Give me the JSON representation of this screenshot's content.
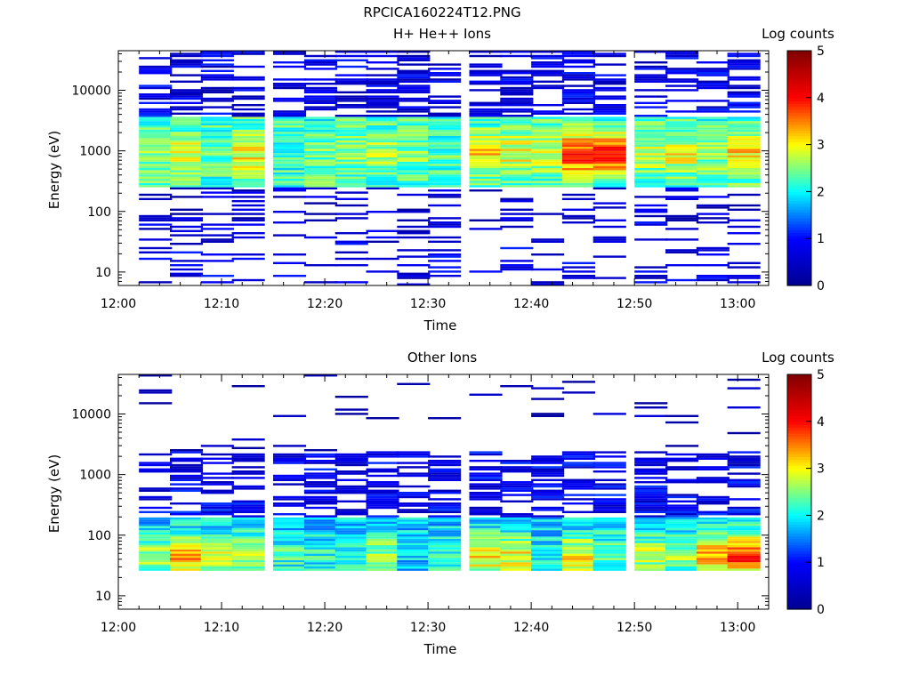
{
  "figure": {
    "title": "RPCICA160224T12.PNG"
  },
  "chart_data": [
    {
      "type": "heatmap",
      "title": "H+ He++ Ions",
      "xlabel": "Time",
      "ylabel": "Energy (eV)",
      "colorbar_label": "Log counts",
      "y_scale": "log",
      "ylim": [
        6,
        45000
      ],
      "x_range": [
        "12:00",
        "13:03"
      ],
      "x_ticks": [
        "12:00",
        "12:10",
        "12:20",
        "12:30",
        "12:40",
        "12:50",
        "13:00"
      ],
      "y_ticks": [
        "10",
        "100",
        "1000",
        "10000"
      ],
      "color_range": [
        0,
        5
      ],
      "colorbar_ticks": [
        "0",
        "1",
        "2",
        "3",
        "4",
        "5"
      ],
      "colormap": [
        "#00008f",
        "#0000ff",
        "#00ffff",
        "#ffff00",
        "#ff0000",
        "#800000"
      ],
      "time_bins_start": [
        "12:02",
        "12:05",
        "12:08",
        "12:11",
        "12:15",
        "12:18",
        "12:21",
        "12:24",
        "12:27",
        "12:30",
        "12:34",
        "12:37",
        "12:40",
        "12:43",
        "12:46",
        "12:50",
        "12:53",
        "12:56",
        "12:59"
      ],
      "bin_width_min": 3.2,
      "profile": {
        "background_bands": [
          {
            "e_min": 6,
            "e_max": 70,
            "level": 0.7,
            "fill": 0.2
          },
          {
            "e_min": 70,
            "e_max": 250,
            "level": 0.5,
            "fill": 0.3
          },
          {
            "e_min": 250,
            "e_max": 3500,
            "level": 2.2,
            "fill": 1.0
          },
          {
            "e_min": 3500,
            "e_max": 45000,
            "level": 0.7,
            "fill": 0.5
          }
        ],
        "peak_energy": 900,
        "peak_level_by_bin": [
          2.6,
          2.8,
          2.3,
          3.0,
          2.2,
          2.4,
          2.5,
          2.7,
          2.5,
          2.3,
          3.2,
          2.9,
          2.8,
          3.8,
          3.7,
          2.8,
          2.9,
          2.6,
          3.1
        ]
      }
    },
    {
      "type": "heatmap",
      "title": "Other Ions",
      "xlabel": "Time",
      "ylabel": "Energy (eV)",
      "colorbar_label": "Log counts",
      "y_scale": "log",
      "ylim": [
        6,
        45000
      ],
      "x_range": [
        "12:00",
        "13:03"
      ],
      "x_ticks": [
        "12:00",
        "12:10",
        "12:20",
        "12:30",
        "12:40",
        "12:50",
        "13:00"
      ],
      "y_ticks": [
        "10",
        "100",
        "1000",
        "10000"
      ],
      "color_range": [
        0,
        5
      ],
      "colorbar_ticks": [
        "0",
        "1",
        "2",
        "3",
        "4",
        "5"
      ],
      "colormap": [
        "#00008f",
        "#0000ff",
        "#00ffff",
        "#ffff00",
        "#ff0000",
        "#800000"
      ],
      "time_bins_start": [
        "12:02",
        "12:05",
        "12:08",
        "12:11",
        "12:15",
        "12:18",
        "12:21",
        "12:24",
        "12:27",
        "12:30",
        "12:34",
        "12:37",
        "12:40",
        "12:43",
        "12:46",
        "12:50",
        "12:53",
        "12:56",
        "12:59"
      ],
      "bin_width_min": 3.2,
      "profile": {
        "background_bands": [
          {
            "e_min": 25,
            "e_max": 200,
            "level": 1.8,
            "fill": 1.0
          },
          {
            "e_min": 200,
            "e_max": 2500,
            "level": 0.8,
            "fill": 0.55
          },
          {
            "e_min": 2500,
            "e_max": 45000,
            "level": 0.3,
            "fill": 0.05
          }
        ],
        "peak_energy": 45,
        "peak_level_by_bin": [
          2.6,
          3.4,
          2.9,
          2.7,
          2.2,
          2.1,
          2.2,
          2.6,
          1.8,
          2.2,
          3.1,
          3.0,
          2.0,
          3.0,
          2.4,
          2.7,
          2.6,
          3.3,
          3.8
        ]
      }
    }
  ]
}
